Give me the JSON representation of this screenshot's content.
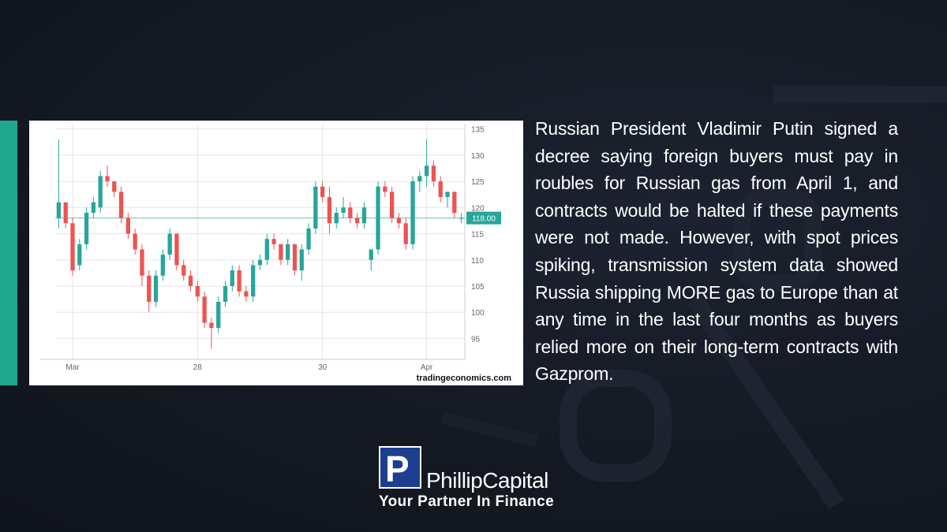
{
  "chart_data": {
    "type": "candlestick",
    "x_tick_labels": [
      "Mar",
      "28",
      "30",
      "Apr"
    ],
    "y_ticks": [
      95,
      100,
      105,
      110,
      115,
      120,
      125,
      130,
      135
    ],
    "ylim": [
      91,
      136
    ],
    "last_price_label": "118.00",
    "last_price": 118.0,
    "grid": true,
    "source": "tradingeconomics.com",
    "colors": {
      "up": "#26a69a",
      "down": "#ef5350",
      "price_tag": "#26a69a"
    },
    "candles": [
      {
        "o": 118,
        "h": 133,
        "l": 116,
        "c": 121
      },
      {
        "o": 121,
        "h": 121,
        "l": 116,
        "c": 117
      },
      {
        "o": 117,
        "h": 118,
        "l": 107,
        "c": 108
      },
      {
        "o": 109,
        "h": 114,
        "l": 108,
        "c": 113
      },
      {
        "o": 113,
        "h": 120,
        "l": 112,
        "c": 119
      },
      {
        "o": 119,
        "h": 122,
        "l": 118,
        "c": 121
      },
      {
        "o": 120,
        "h": 127,
        "l": 119,
        "c": 126
      },
      {
        "o": 126,
        "h": 128,
        "l": 124,
        "c": 125
      },
      {
        "o": 125,
        "h": 125,
        "l": 122,
        "c": 123
      },
      {
        "o": 123,
        "h": 124,
        "l": 117,
        "c": 118
      },
      {
        "o": 118,
        "h": 119,
        "l": 114,
        "c": 115
      },
      {
        "o": 115,
        "h": 116,
        "l": 111,
        "c": 112
      },
      {
        "o": 112,
        "h": 113,
        "l": 105,
        "c": 107
      },
      {
        "o": 107,
        "h": 108,
        "l": 100,
        "c": 102
      },
      {
        "o": 102,
        "h": 108,
        "l": 101,
        "c": 107
      },
      {
        "o": 107,
        "h": 112,
        "l": 106,
        "c": 111
      },
      {
        "o": 111,
        "h": 116,
        "l": 110,
        "c": 115
      },
      {
        "o": 115,
        "h": 115,
        "l": 108,
        "c": 109
      },
      {
        "o": 109,
        "h": 110,
        "l": 106,
        "c": 107
      },
      {
        "o": 107,
        "h": 108,
        "l": 104,
        "c": 105
      },
      {
        "o": 105,
        "h": 106,
        "l": 102,
        "c": 103
      },
      {
        "o": 103,
        "h": 104,
        "l": 97,
        "c": 98
      },
      {
        "o": 98,
        "h": 99,
        "l": 93,
        "c": 97
      },
      {
        "o": 97,
        "h": 103,
        "l": 96,
        "c": 102
      },
      {
        "o": 102,
        "h": 106,
        "l": 101,
        "c": 105
      },
      {
        "o": 105,
        "h": 109,
        "l": 104,
        "c": 108
      },
      {
        "o": 108,
        "h": 109,
        "l": 103,
        "c": 104
      },
      {
        "o": 104,
        "h": 105,
        "l": 102,
        "c": 103
      },
      {
        "o": 103,
        "h": 110,
        "l": 102,
        "c": 109
      },
      {
        "o": 109,
        "h": 111,
        "l": 108,
        "c": 110
      },
      {
        "o": 110,
        "h": 115,
        "l": 109,
        "c": 114
      },
      {
        "o": 114,
        "h": 115,
        "l": 112,
        "c": 113
      },
      {
        "o": 113,
        "h": 113,
        "l": 109,
        "c": 110
      },
      {
        "o": 110,
        "h": 114,
        "l": 109,
        "c": 113
      },
      {
        "o": 113,
        "h": 113,
        "l": 107,
        "c": 108
      },
      {
        "o": 108,
        "h": 113,
        "l": 106,
        "c": 112
      },
      {
        "o": 112,
        "h": 117,
        "l": 111,
        "c": 116
      },
      {
        "o": 116,
        "h": 125,
        "l": 115,
        "c": 124
      },
      {
        "o": 124,
        "h": 125,
        "l": 121,
        "c": 122
      },
      {
        "o": 122,
        "h": 124,
        "l": 115,
        "c": 117
      },
      {
        "o": 117,
        "h": 120,
        "l": 116,
        "c": 119
      },
      {
        "o": 119,
        "h": 122,
        "l": 118,
        "c": 120
      },
      {
        "o": 120,
        "h": 121,
        "l": 117,
        "c": 118
      },
      {
        "o": 118,
        "h": 119,
        "l": 116,
        "c": 117
      },
      {
        "o": 117,
        "h": 121,
        "l": 116,
        "c": 120
      },
      {
        "o": 110,
        "h": 112,
        "l": 108,
        "c": 112
      },
      {
        "o": 112,
        "h": 125,
        "l": 111,
        "c": 124
      },
      {
        "o": 124,
        "h": 125,
        "l": 122,
        "c": 123
      },
      {
        "o": 123,
        "h": 124,
        "l": 117,
        "c": 118
      },
      {
        "o": 118,
        "h": 119,
        "l": 116,
        "c": 117
      },
      {
        "o": 117,
        "h": 118,
        "l": 112,
        "c": 113
      },
      {
        "o": 113,
        "h": 126,
        "l": 112,
        "c": 125
      },
      {
        "o": 125,
        "h": 127,
        "l": 123,
        "c": 126
      },
      {
        "o": 126,
        "h": 133,
        "l": 124,
        "c": 128
      },
      {
        "o": 128,
        "h": 129,
        "l": 124,
        "c": 125
      },
      {
        "o": 125,
        "h": 126,
        "l": 121,
        "c": 122
      },
      {
        "o": 122,
        "h": 123,
        "l": 120,
        "c": 123
      },
      {
        "o": 123,
        "h": 123,
        "l": 118,
        "c": 119
      },
      {
        "o": 118,
        "h": 119,
        "l": 117,
        "c": 118
      }
    ]
  },
  "body_text": "Russian President Vladimir Putin signed a decree saying foreign buyers must pay in roubles for Russian gas from April 1, and contracts would be halted if these payments were not made. However, with spot prices spiking, transmission system data showed Russia shipping MORE gas to Europe than at any time in the last four months as buyers relied more on their long-term contracts with Gazprom.",
  "logo": {
    "mark": "P",
    "name": "PhillipCapital",
    "tagline": "Your Partner In Finance"
  }
}
